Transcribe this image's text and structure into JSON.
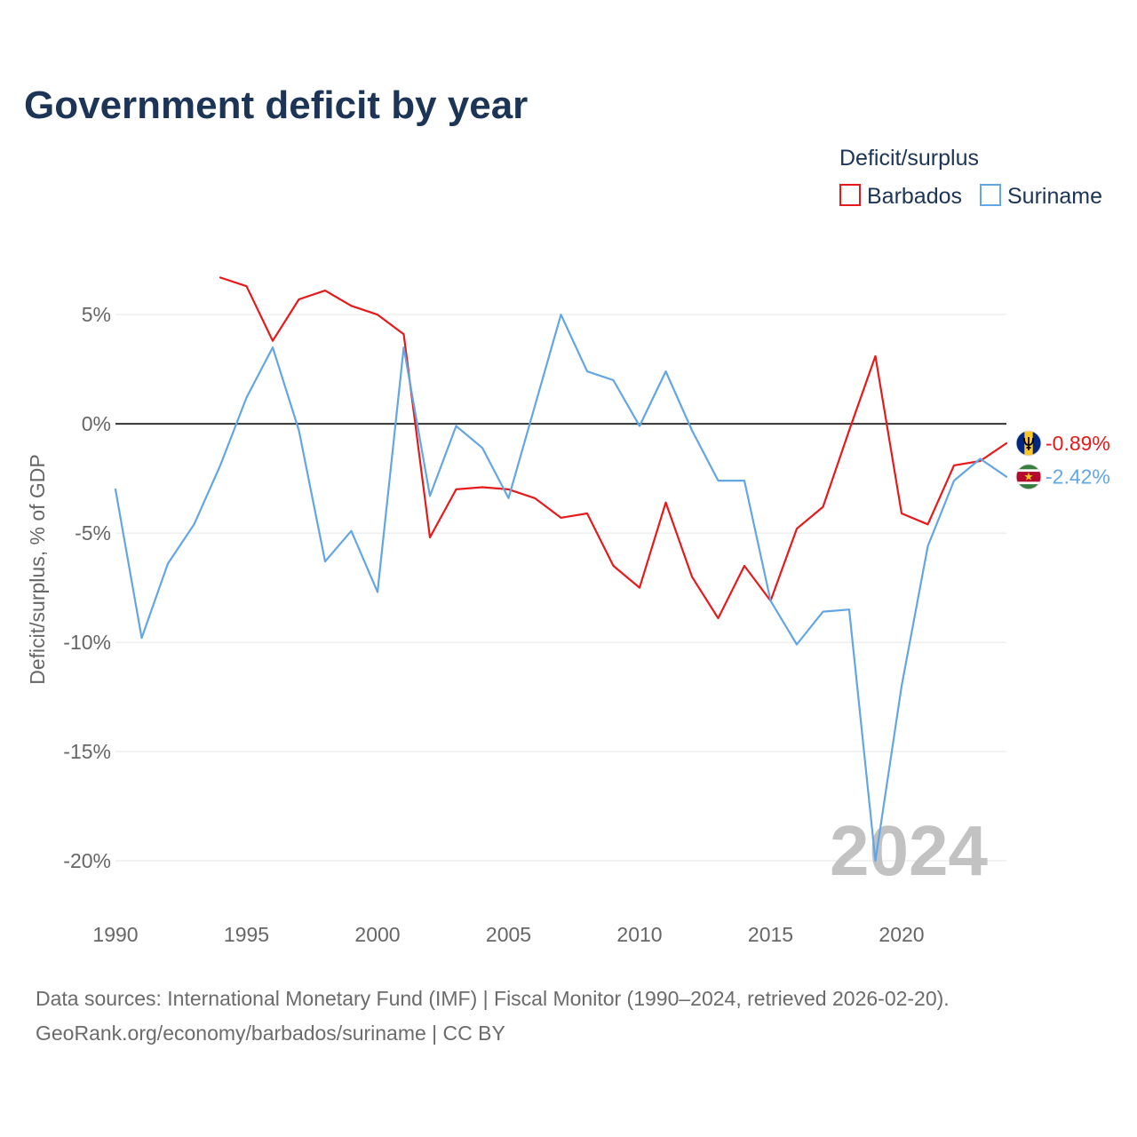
{
  "chart_data": {
    "type": "line",
    "title": "Government deficit by year",
    "legend_title": "Deficit/surplus",
    "ylabel": "Deficit/surplus, % of GDP",
    "year_watermark": "2024",
    "grid": true,
    "xlim": [
      1990,
      2024
    ],
    "ylim": [
      -21,
      7
    ],
    "x": [
      1990,
      1991,
      1992,
      1993,
      1994,
      1995,
      1996,
      1997,
      1998,
      1999,
      2000,
      2001,
      2002,
      2003,
      2004,
      2005,
      2006,
      2007,
      2008,
      2009,
      2010,
      2011,
      2012,
      2013,
      2014,
      2015,
      2016,
      2017,
      2018,
      2019,
      2020,
      2021,
      2022,
      2023,
      2024
    ],
    "x_ticks": [
      {
        "value": 1990,
        "label": "1990"
      },
      {
        "value": 1995,
        "label": "1995"
      },
      {
        "value": 2000,
        "label": "2000"
      },
      {
        "value": 2005,
        "label": "2005"
      },
      {
        "value": 2010,
        "label": "2010"
      },
      {
        "value": 2015,
        "label": "2015"
      },
      {
        "value": 2020,
        "label": "2020"
      }
    ],
    "y_ticks": [
      {
        "value": 5,
        "label": "5%"
      },
      {
        "value": 0,
        "label": "0%"
      },
      {
        "value": -5,
        "label": "-5%"
      },
      {
        "value": -10,
        "label": "-10%"
      },
      {
        "value": -15,
        "label": "-15%"
      },
      {
        "value": -20,
        "label": "-20%"
      }
    ],
    "series": [
      {
        "name": "Barbados",
        "color": "#e6191b",
        "flag_icon": "barbados-flag-icon",
        "end_label": "-0.89%",
        "values": [
          null,
          null,
          null,
          null,
          6.7,
          6.3,
          3.8,
          5.7,
          6.1,
          5.4,
          5.0,
          4.1,
          -5.2,
          -3.0,
          -2.9,
          -3.0,
          -3.4,
          -4.3,
          -4.1,
          -6.5,
          -7.5,
          -3.6,
          -7.0,
          -8.9,
          -6.5,
          -8.1,
          -4.8,
          -3.8,
          -0.3,
          3.1,
          -4.1,
          -4.6,
          -1.9,
          -1.7,
          -0.89
        ]
      },
      {
        "name": "Suriname",
        "color": "#62a6e3",
        "flag_icon": "suriname-flag-icon",
        "end_label": "-2.42%",
        "values": [
          -3.0,
          -9.8,
          -6.4,
          -4.6,
          -1.9,
          1.2,
          3.5,
          -0.3,
          -6.3,
          -4.9,
          -7.7,
          3.5,
          -3.3,
          -0.1,
          -1.1,
          -3.4,
          0.8,
          5.0,
          2.4,
          2.0,
          -0.1,
          2.4,
          -0.3,
          -2.6,
          -2.6,
          -8.1,
          -10.1,
          -8.6,
          -8.5,
          -20.0,
          -12.0,
          -5.6,
          -2.6,
          -1.6,
          -2.42
        ]
      }
    ]
  },
  "footer": {
    "sources": "Data sources: International Monetary Fund (IMF) | Fiscal Monitor (1990–2024, retrieved 2026-02-20).",
    "credit": "GeoRank.org/economy/barbados/suriname | CC BY"
  }
}
